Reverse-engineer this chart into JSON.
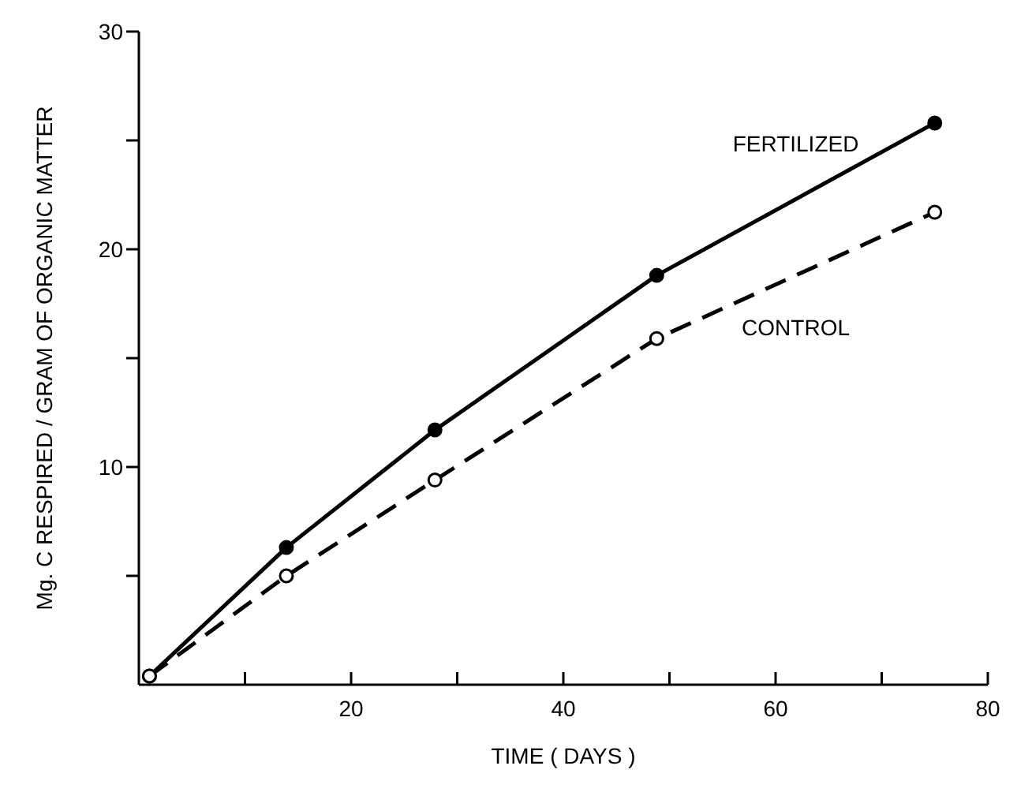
{
  "chart_data": {
    "type": "line",
    "xlabel": "TIME ( DAYS )",
    "ylabel": "Mg. C RESPIRED / GRAM OF ORGANIC MATTER",
    "x": [
      1,
      13.9,
      27.9,
      48.8,
      75
    ],
    "series": [
      {
        "name": "FERTILIZED",
        "color": "#000000",
        "line_style": "solid",
        "values": [
          0.4,
          6.3,
          11.7,
          18.8,
          25.8
        ]
      },
      {
        "name": "CONTROL",
        "color": "#000000",
        "line_style": "dashed",
        "values": [
          0.4,
          5.0,
          9.4,
          15.9,
          21.7
        ]
      }
    ],
    "xlim": [
      0,
      80
    ],
    "ylim": [
      0,
      30
    ],
    "xticks": [
      {
        "value": 10,
        "label": null
      },
      20,
      {
        "value": 30,
        "label": null
      },
      40,
      {
        "value": 50,
        "label": null
      },
      60,
      {
        "value": 70,
        "label": null
      },
      80
    ],
    "yticks": [
      {
        "value": 5,
        "label": null
      },
      10,
      {
        "value": 15,
        "label": null
      },
      20,
      {
        "value": 25,
        "label": null
      },
      30
    ],
    "marker": "circle",
    "grid": false,
    "legend": false
  }
}
